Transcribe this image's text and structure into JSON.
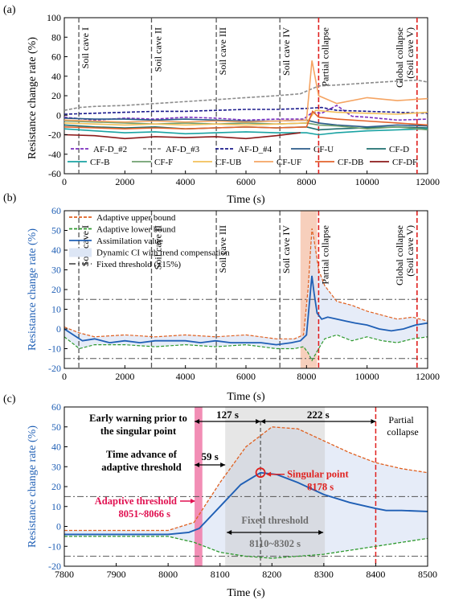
{
  "chart_data": [
    {
      "panel": "(a)",
      "type": "line",
      "xlabel": "Time (s)",
      "ylabel": "Resistance change rate (%)",
      "xlim": [
        0,
        12000
      ],
      "ylim": [
        -60,
        100
      ],
      "xticks": [
        0,
        2000,
        4000,
        6000,
        8000,
        10000,
        12000
      ],
      "yticks": [
        -60,
        -40,
        -20,
        0,
        20,
        40,
        60,
        80,
        100
      ],
      "events": [
        {
          "x": 480,
          "label": "Soil cave I",
          "style": "gray-dash"
        },
        {
          "x": 2880,
          "label": "Soil cave II",
          "style": "gray-dash"
        },
        {
          "x": 5020,
          "label": "Soil cave III",
          "style": "gray-dash"
        },
        {
          "x": 7120,
          "label": "Soil cave IV",
          "style": "gray-dash"
        },
        {
          "x": 8400,
          "label": "Partial collapse",
          "style": "red-dash"
        },
        {
          "x": 11650,
          "label": "Global collapse (Soil cave V)",
          "style": "red-dash"
        }
      ],
      "legend_position": "bottom",
      "series": [
        {
          "name": "AF-D_#2",
          "color": "#7B2FBF",
          "dash": "4,2",
          "x": [
            0,
            1000,
            2000,
            3000,
            4000,
            5000,
            6000,
            7000,
            7900,
            8200,
            8500,
            9000,
            9500,
            10000,
            11000,
            12000
          ],
          "y": [
            -2,
            -5,
            -3,
            -4,
            -2,
            -3,
            -5,
            -4,
            -4,
            3,
            2,
            10,
            -1,
            -2,
            -5,
            -4
          ]
        },
        {
          "name": "AF-D_#3",
          "color": "#8C8C8C",
          "dash": "4,2",
          "x": [
            0,
            500,
            1000,
            2000,
            3000,
            4000,
            5000,
            6000,
            7000,
            7800,
            8100,
            8400,
            9000,
            10000,
            11000,
            11650,
            12000
          ],
          "y": [
            5,
            8,
            9,
            10,
            12,
            14,
            16,
            18,
            20,
            22,
            26,
            30,
            31,
            33,
            35,
            36,
            34
          ]
        },
        {
          "name": "AF-D_#4",
          "color": "#1A1A8C",
          "dash": "4,2",
          "x": [
            0,
            1000,
            2000,
            3000,
            4000,
            5000,
            6000,
            7000,
            8000,
            8500,
            9000,
            10000,
            11000,
            12000
          ],
          "y": [
            1,
            2,
            3,
            4,
            4,
            5,
            6,
            6,
            7,
            8,
            5,
            4,
            3,
            2
          ]
        },
        {
          "name": "CF-U",
          "color": "#2B5C8A",
          "dash": "",
          "x": [
            0,
            1000,
            2000,
            3000,
            4000,
            5000,
            6000,
            7000,
            8000,
            8400,
            9000,
            10000,
            11000,
            12000
          ],
          "y": [
            -3,
            -4,
            -4,
            -5,
            -4,
            -5,
            -6,
            -6,
            -5,
            -8,
            -10,
            -12,
            -10,
            -11
          ]
        },
        {
          "name": "CF-D",
          "color": "#1F6F6F",
          "dash": "",
          "x": [
            0,
            1000,
            2000,
            3000,
            4000,
            5000,
            6000,
            7000,
            8000,
            8400,
            9000,
            10000,
            11000,
            12000
          ],
          "y": [
            -10,
            -12,
            -13,
            -12,
            -14,
            -13,
            -12,
            -13,
            -12,
            -15,
            -14,
            -13,
            -12,
            -13
          ]
        },
        {
          "name": "CF-B",
          "color": "#1AA3A3",
          "dash": "",
          "x": [
            0,
            1000,
            2000,
            3000,
            4000,
            5000,
            6000,
            7000,
            8000,
            8400,
            9000,
            10000,
            11000,
            12000
          ],
          "y": [
            -14,
            -16,
            -18,
            -17,
            -19,
            -18,
            -17,
            -18,
            -18,
            -20,
            -18,
            -16,
            -15,
            -14
          ]
        },
        {
          "name": "CF-F",
          "color": "#6FA06F",
          "dash": "",
          "x": [
            0,
            1000,
            2000,
            3000,
            4000,
            5000,
            6000,
            7000,
            8000,
            8400,
            9000,
            10000,
            11000,
            12000
          ],
          "y": [
            -6,
            -7,
            -8,
            -9,
            -8,
            -9,
            -8,
            -9,
            -8,
            -10,
            -11,
            -14,
            -12,
            -15
          ]
        },
        {
          "name": "CF-UB",
          "color": "#F2C05A",
          "dash": "",
          "x": [
            0,
            1000,
            2000,
            3000,
            4000,
            5000,
            6000,
            7000,
            8000,
            8300,
            9000,
            10000,
            11000,
            12000
          ],
          "y": [
            -8,
            -9,
            -10,
            -9,
            -10,
            -9,
            -10,
            -9,
            -8,
            5,
            3,
            2,
            1,
            3
          ]
        },
        {
          "name": "CF-UF",
          "color": "#F5A462",
          "dash": "",
          "x": [
            0,
            1000,
            2000,
            3000,
            4000,
            5000,
            6000,
            7000,
            8000,
            8180,
            8400,
            9000,
            10000,
            11000,
            12000
          ],
          "y": [
            -5,
            -6,
            -7,
            -6,
            -7,
            -6,
            -7,
            -6,
            -5,
            56,
            20,
            12,
            18,
            15,
            17
          ]
        },
        {
          "name": "CF-DB",
          "color": "#E2622B",
          "dash": "",
          "x": [
            0,
            1000,
            2000,
            3000,
            4000,
            5000,
            6000,
            7000,
            8000,
            8200,
            8400,
            9000,
            10000,
            11000,
            12000
          ],
          "y": [
            -12,
            -13,
            -14,
            -13,
            -14,
            -13,
            -12,
            -13,
            -12,
            4,
            -2,
            -4,
            -6,
            -8,
            -10
          ]
        },
        {
          "name": "CF-DF",
          "color": "#8B1A1A",
          "dash": "",
          "x": [
            0,
            1000,
            2000,
            3000,
            4000,
            5000,
            6000,
            7000,
            7800
          ],
          "y": [
            -20,
            -21,
            -24,
            -22,
            -23,
            -22,
            -24,
            -21,
            -18
          ]
        }
      ]
    },
    {
      "panel": "(b)",
      "type": "line",
      "xlabel": "Time (s)",
      "ylabel": "Resistance change rate (%)",
      "xlim": [
        0,
        12000
      ],
      "ylim": [
        -20,
        60
      ],
      "xticks": [
        0,
        2000,
        4000,
        6000,
        8000,
        10000,
        12000
      ],
      "yticks": [
        -20,
        -10,
        0,
        10,
        20,
        30,
        40,
        50,
        60
      ],
      "fixed_threshold": [
        15,
        -15
      ],
      "highlight_band": [
        7800,
        8350
      ],
      "events": [
        {
          "x": 480,
          "label": "Soil cave I",
          "style": "gray-dash"
        },
        {
          "x": 2880,
          "label": "Soil cave II",
          "style": "gray-dash"
        },
        {
          "x": 5020,
          "label": "Soil cave III",
          "style": "gray-dash"
        },
        {
          "x": 7120,
          "label": "Soil cave IV",
          "style": "gray-dash"
        },
        {
          "x": 8400,
          "label": "Partial collapse",
          "style": "red-dash"
        },
        {
          "x": 11650,
          "label": "Global collapse (Soil cave V)",
          "style": "red-dash"
        }
      ],
      "legend_position": "top-left",
      "legend": [
        "Adaptive upper bound",
        "Adaptive lower bound",
        "Assimilation value",
        "Dynamic CI with trend compensation",
        "Fixed threshold (±15%)"
      ],
      "series": [
        {
          "name": "Adaptive upper bound",
          "color": "#E06020",
          "dash": "4,2",
          "x": [
            0,
            500,
            1000,
            2000,
            3000,
            4000,
            5000,
            6000,
            7000,
            7600,
            7900,
            8050,
            8180,
            8250,
            8400,
            8600,
            9000,
            9500,
            10000,
            10500,
            11000,
            11500,
            12000
          ],
          "y": [
            1,
            -2,
            -4,
            -3,
            -4,
            -3,
            -4,
            -3,
            -5,
            -5,
            -3,
            20,
            51,
            45,
            30,
            22,
            14,
            12,
            9,
            7,
            5,
            6,
            4
          ]
        },
        {
          "name": "Adaptive lower bound",
          "color": "#2E9A2E",
          "dash": "4,2",
          "x": [
            0,
            500,
            1000,
            2000,
            3000,
            4000,
            5000,
            6000,
            7000,
            7600,
            7900,
            8050,
            8180,
            8250,
            8400,
            8600,
            9000,
            9500,
            10000,
            10500,
            11000,
            11500,
            12000
          ],
          "y": [
            -4,
            -10,
            -8,
            -8,
            -9,
            -8,
            -9,
            -8,
            -10,
            -10,
            -9,
            -12,
            -16,
            -14,
            -10,
            -5,
            -3,
            -6,
            -4,
            -6,
            -7,
            -5,
            -4
          ]
        },
        {
          "name": "Assimilation value",
          "color": "#1F5FB5",
          "dash": "",
          "x": [
            0,
            300,
            600,
            1000,
            1500,
            2000,
            2500,
            3000,
            3500,
            4000,
            4500,
            5000,
            5500,
            6000,
            6500,
            7000,
            7500,
            7800,
            8000,
            8100,
            8178,
            8250,
            8350,
            8500,
            8700,
            9000,
            9300,
            9600,
            10000,
            10400,
            10800,
            11200,
            11600,
            12000
          ],
          "y": [
            0,
            -3,
            -6,
            -5,
            -7,
            -6,
            -7,
            -6,
            -6,
            -6,
            -7,
            -6,
            -7,
            -7,
            -7,
            -8,
            -7,
            -6,
            -3,
            14,
            27,
            18,
            8,
            5,
            6,
            5,
            4,
            3,
            2,
            0,
            -1,
            0,
            2,
            3
          ]
        }
      ]
    },
    {
      "panel": "(c)",
      "type": "line",
      "xlabel": "Time (s)",
      "ylabel": "Resistance change rate (%)",
      "xlim": [
        7800,
        8500
      ],
      "ylim": [
        -20,
        60
      ],
      "xticks": [
        7800,
        7900,
        8000,
        8100,
        8200,
        8300,
        8400,
        8500
      ],
      "yticks": [
        -20,
        -10,
        0,
        10,
        20,
        30,
        40,
        50,
        60
      ],
      "fixed_threshold": [
        15,
        -15
      ],
      "adaptive_window": [
        8051,
        8066
      ],
      "fixed_window": [
        8110,
        8302
      ],
      "singular_point": [
        8178,
        27
      ],
      "partial_collapse_x": 8400,
      "series": [
        {
          "name": "Adaptive upper bound",
          "color": "#E06020",
          "dash": "4,2",
          "x": [
            7800,
            7900,
            8000,
            8050,
            8100,
            8150,
            8200,
            8250,
            8300,
            8350,
            8400,
            8450,
            8500
          ],
          "y": [
            -2,
            -2,
            -2,
            2,
            22,
            40,
            50,
            49,
            43,
            37,
            32,
            29,
            27
          ]
        },
        {
          "name": "Adaptive lower bound",
          "color": "#2E9A2E",
          "dash": "4,2",
          "x": [
            7800,
            7900,
            8000,
            8050,
            8100,
            8150,
            8200,
            8250,
            8300,
            8350,
            8400,
            8450,
            8500
          ],
          "y": [
            -5,
            -5,
            -5,
            -8,
            -13,
            -15,
            -16,
            -15,
            -14,
            -12,
            -10,
            -8,
            -6
          ]
        },
        {
          "name": "Assimilation value",
          "color": "#1F5FB5",
          "dash": "",
          "x": [
            7800,
            7850,
            7900,
            7950,
            8000,
            8040,
            8060,
            8100,
            8140,
            8178,
            8210,
            8250,
            8300,
            8350,
            8400,
            8420,
            8450,
            8500
          ],
          "y": [
            -4,
            -4,
            -4,
            -4,
            -4,
            -3,
            -1,
            10,
            21,
            27,
            26,
            22,
            16,
            12,
            9,
            8,
            8,
            7.5
          ]
        }
      ]
    }
  ],
  "labels": {
    "panel_a": "(a)",
    "panel_b": "(b)",
    "panel_c": "(c)",
    "ylabel": "Resistance change rate (%)",
    "xlabel": "Time (s)",
    "cave1": "Soil cave I",
    "cave2": "Soil cave II",
    "cave3": "Soil cave III",
    "cave4": "Soil cave IV",
    "partial": "Partial collapse",
    "global1": "Global collapse",
    "global2": "(Soil cave V)",
    "early1": "Early warning prior to",
    "early2": "the singular point",
    "time_adv1": "Time advance of",
    "time_adv2": "adaptive threshold",
    "d127": "127 s",
    "d222": "222 s",
    "d59": "59 s",
    "singular1": "Singular point",
    "singular2": "8178 s",
    "adaptive1": "Adaptive threshold",
    "adaptive2": "8051~8066 s",
    "fixed1": "Fixed threshold",
    "fixed2": "8110~8302 s",
    "partial1": "Partial",
    "partial2": "collapse",
    "leg_b_upper": "Adaptive upper bound",
    "leg_b_lower": "Adaptive lower bound",
    "leg_b_assim": "Assimilation value",
    "leg_b_ci": "Dynamic CI with trend compensation",
    "leg_b_fixed": "Fixed threshold (±15%)"
  },
  "colors": {
    "blue": "#1F5FB5",
    "orange": "#E06020",
    "green": "#2E9A2E",
    "red": "#E0201E",
    "pink": "#F07AA8",
    "crimson": "#E01050",
    "ci_fill": "#DDE6F5",
    "band": "#F6C7B0"
  }
}
